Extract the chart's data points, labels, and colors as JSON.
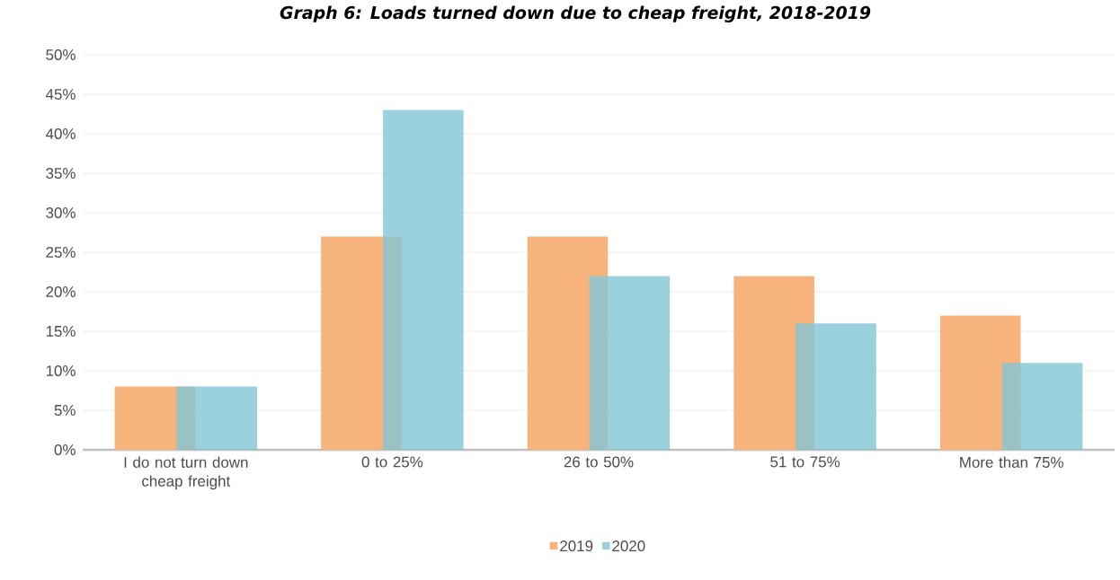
{
  "chart_data": {
    "type": "bar",
    "title": "Graph 6: Loads turned down due to cheap freight, 2018-2019",
    "categories": [
      "I do not turn down cheap freight",
      "0 to 25%",
      "26 to 50%",
      "51 to 75%",
      "More than 75%"
    ],
    "series": [
      {
        "name": "2019",
        "color": "#f7b37c",
        "values": [
          8,
          27,
          27,
          22,
          17
        ]
      },
      {
        "name": "2020",
        "color": "#82c4d5",
        "values": [
          8,
          43,
          22,
          16,
          11
        ]
      }
    ],
    "ylim": [
      0,
      50
    ],
    "yticks": [
      {
        "value": 0,
        "label": "0%"
      },
      {
        "value": 5,
        "label": "5%"
      },
      {
        "value": 10,
        "label": "10%"
      },
      {
        "value": 15,
        "label": "15%"
      },
      {
        "value": 20,
        "label": "20%"
      },
      {
        "value": 25,
        "label": "25%"
      },
      {
        "value": 30,
        "label": "30%"
      },
      {
        "value": 35,
        "label": "35%"
      },
      {
        "value": 40,
        "label": "40%"
      },
      {
        "value": 45,
        "label": "45%"
      },
      {
        "value": 50,
        "label": "50%"
      }
    ],
    "grid": "y",
    "legend": "bottom"
  }
}
